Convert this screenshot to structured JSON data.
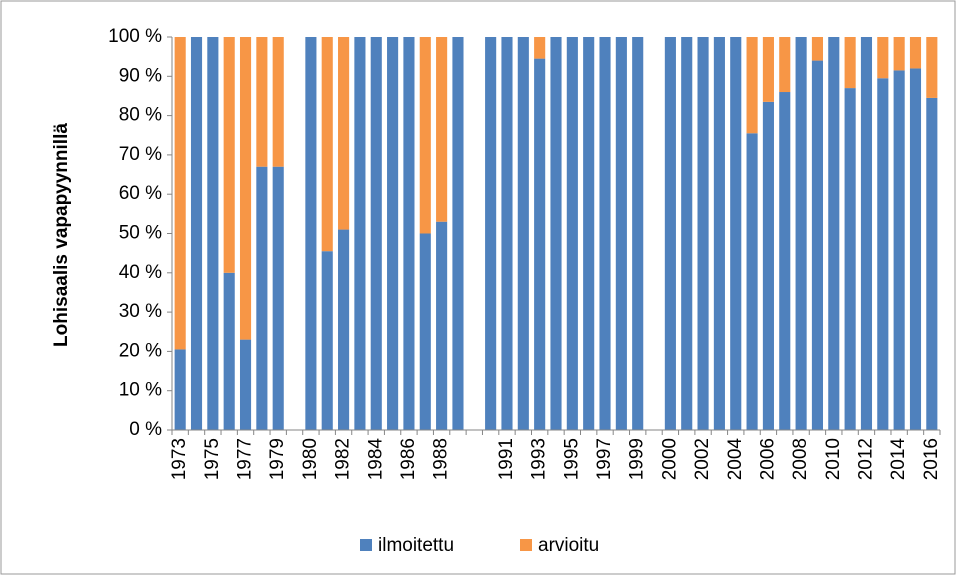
{
  "chart_data": {
    "type": "stacked_bar",
    "y_label": "Lohisaalis vapapyynnillä",
    "categories": [
      "1973",
      null,
      "1975",
      null,
      "1977",
      null,
      "1979",
      null,
      "1980",
      null,
      "1982",
      null,
      "1984",
      null,
      "1986",
      null,
      "1988",
      null,
      null,
      null,
      "1991",
      null,
      "1993",
      null,
      "1995",
      null,
      "1997",
      null,
      "1999",
      null,
      "2000",
      null,
      "2002",
      null,
      "2004",
      null,
      "2006",
      null,
      "2008",
      null,
      "2010",
      null,
      "2012",
      null,
      "2014",
      null,
      "2016"
    ],
    "series": [
      {
        "name": "ilmoitettu",
        "color": "#4f81bd",
        "values": [
          20.5,
          100,
          100,
          40,
          23,
          67,
          67,
          null,
          100,
          45.5,
          51,
          100,
          100,
          100,
          100,
          50,
          53,
          100,
          null,
          100,
          100,
          100,
          94.5,
          100,
          100,
          100,
          100,
          100,
          100,
          null,
          100,
          100,
          100,
          100,
          100,
          75.5,
          83.5,
          86,
          100,
          94,
          100,
          87,
          100,
          89.5,
          91.5,
          92,
          84.5
        ]
      },
      {
        "name": "arvioitu",
        "color": "#f79646",
        "values": [
          79.5,
          0,
          0,
          60,
          77,
          33,
          33,
          null,
          0,
          54.5,
          49,
          0,
          0,
          0,
          0,
          50,
          47,
          0,
          null,
          0,
          0,
          0,
          5.5,
          0,
          0,
          0,
          0,
          0,
          0,
          null,
          0,
          0,
          0,
          0,
          0,
          24.5,
          16.5,
          14,
          0,
          6,
          0,
          13,
          0,
          10.5,
          8.5,
          8,
          15.5
        ]
      }
    ],
    "ylim": [
      0,
      100
    ],
    "yticks": [
      {
        "value": 0,
        "label": "0 %"
      },
      {
        "value": 10,
        "label": "10 %"
      },
      {
        "value": 20,
        "label": "20 %"
      },
      {
        "value": 30,
        "label": "30 %"
      },
      {
        "value": 40,
        "label": "40 %"
      },
      {
        "value": 50,
        "label": "50 %"
      },
      {
        "value": 60,
        "label": "60 %"
      },
      {
        "value": 70,
        "label": "70 %"
      },
      {
        "value": 80,
        "label": "80 %"
      },
      {
        "value": 90,
        "label": "90 %"
      },
      {
        "value": 100,
        "label": "100 %"
      }
    ],
    "grid": false,
    "legend": "bottom"
  }
}
